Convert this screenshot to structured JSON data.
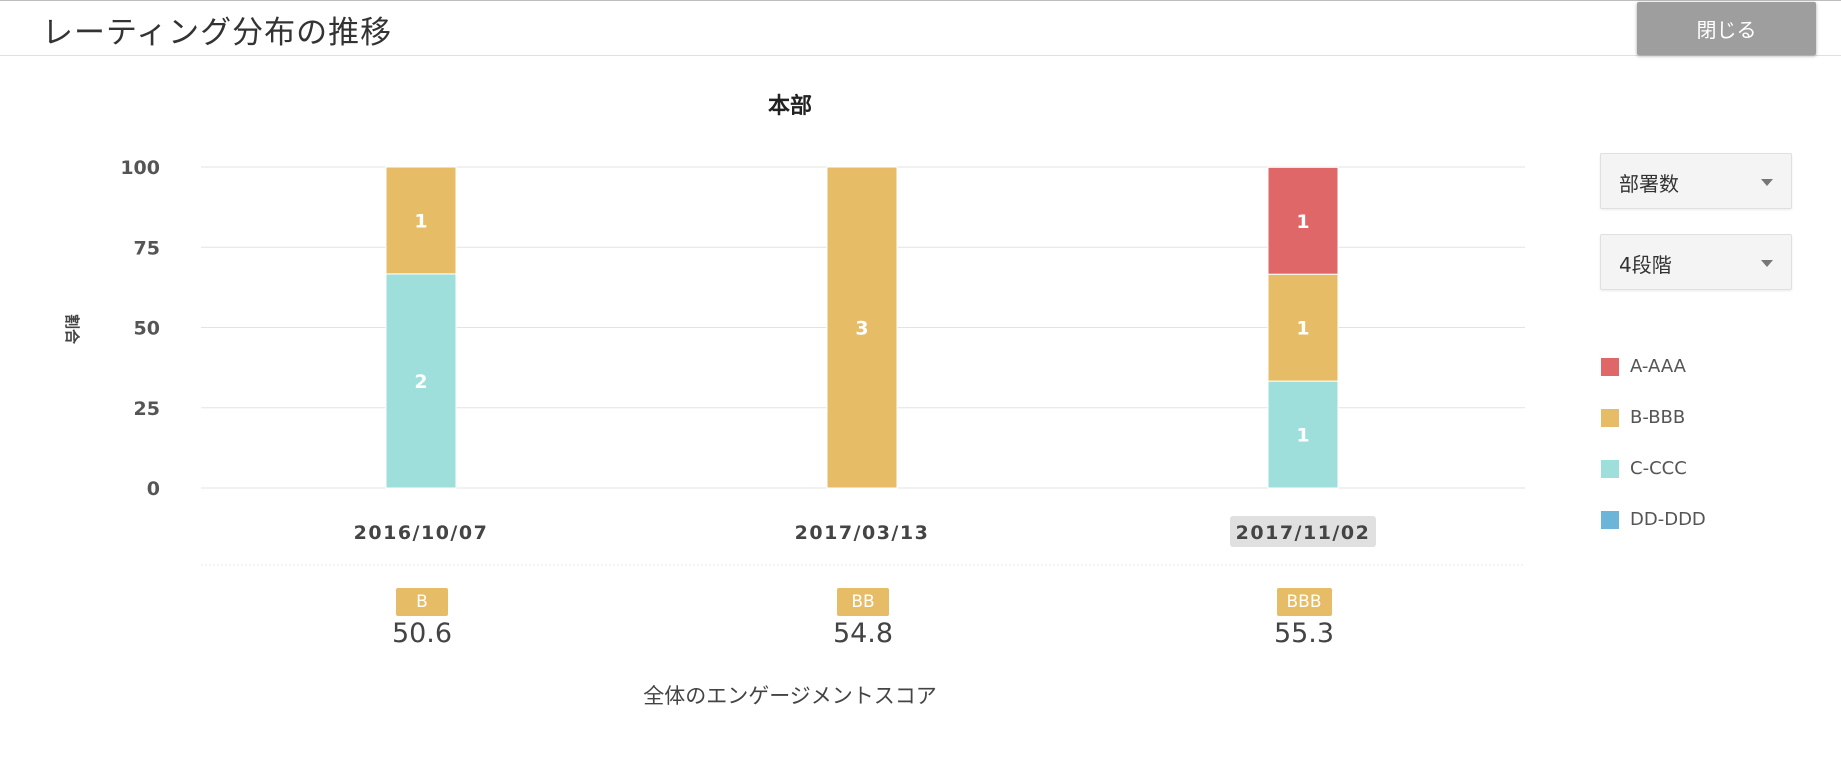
{
  "header": {
    "title": "レーティング分布の推移",
    "close_label": "閉じる"
  },
  "controls": {
    "metric_select": {
      "value": "部署数"
    },
    "level_select": {
      "value": "4段階"
    }
  },
  "legend": [
    {
      "label": "A-AAA",
      "color": "#df6767"
    },
    {
      "label": "B-BBB",
      "color": "#e6bc66"
    },
    {
      "label": "C-CCC",
      "color": "#9edfdc"
    },
    {
      "label": "DD-DDD",
      "color": "#6cb4d8"
    }
  ],
  "scores": {
    "caption": "全体のエンゲージメントスコア",
    "items": [
      {
        "badge": "B",
        "value": "50.6"
      },
      {
        "badge": "BB",
        "value": "54.8"
      },
      {
        "badge": "BBB",
        "value": "55.3"
      }
    ]
  },
  "chart_data": {
    "type": "bar",
    "stacked": true,
    "title": "本部",
    "ylabel": "割合",
    "xlabel": "",
    "ylim": [
      0,
      100
    ],
    "yticks": [
      0,
      25,
      50,
      75,
      100
    ],
    "categories": [
      "2016/10/07",
      "2017/03/13",
      "2017/11/02"
    ],
    "highlighted_category": "2017/11/02",
    "grid": true,
    "legend_position": "right",
    "series": [
      {
        "name": "C-CCC",
        "color": "#9edfdc",
        "counts": [
          2,
          0,
          1
        ],
        "values": [
          66.7,
          0,
          33.3
        ]
      },
      {
        "name": "B-BBB",
        "color": "#e6bc66",
        "counts": [
          1,
          3,
          1
        ],
        "values": [
          33.3,
          100,
          33.3
        ]
      },
      {
        "name": "A-AAA",
        "color": "#df6767",
        "counts": [
          0,
          0,
          1
        ],
        "values": [
          0,
          0,
          33.3
        ]
      },
      {
        "name": "DD-DDD",
        "color": "#6cb4d8",
        "counts": [
          0,
          0,
          0
        ],
        "values": [
          0,
          0,
          0
        ]
      }
    ]
  }
}
